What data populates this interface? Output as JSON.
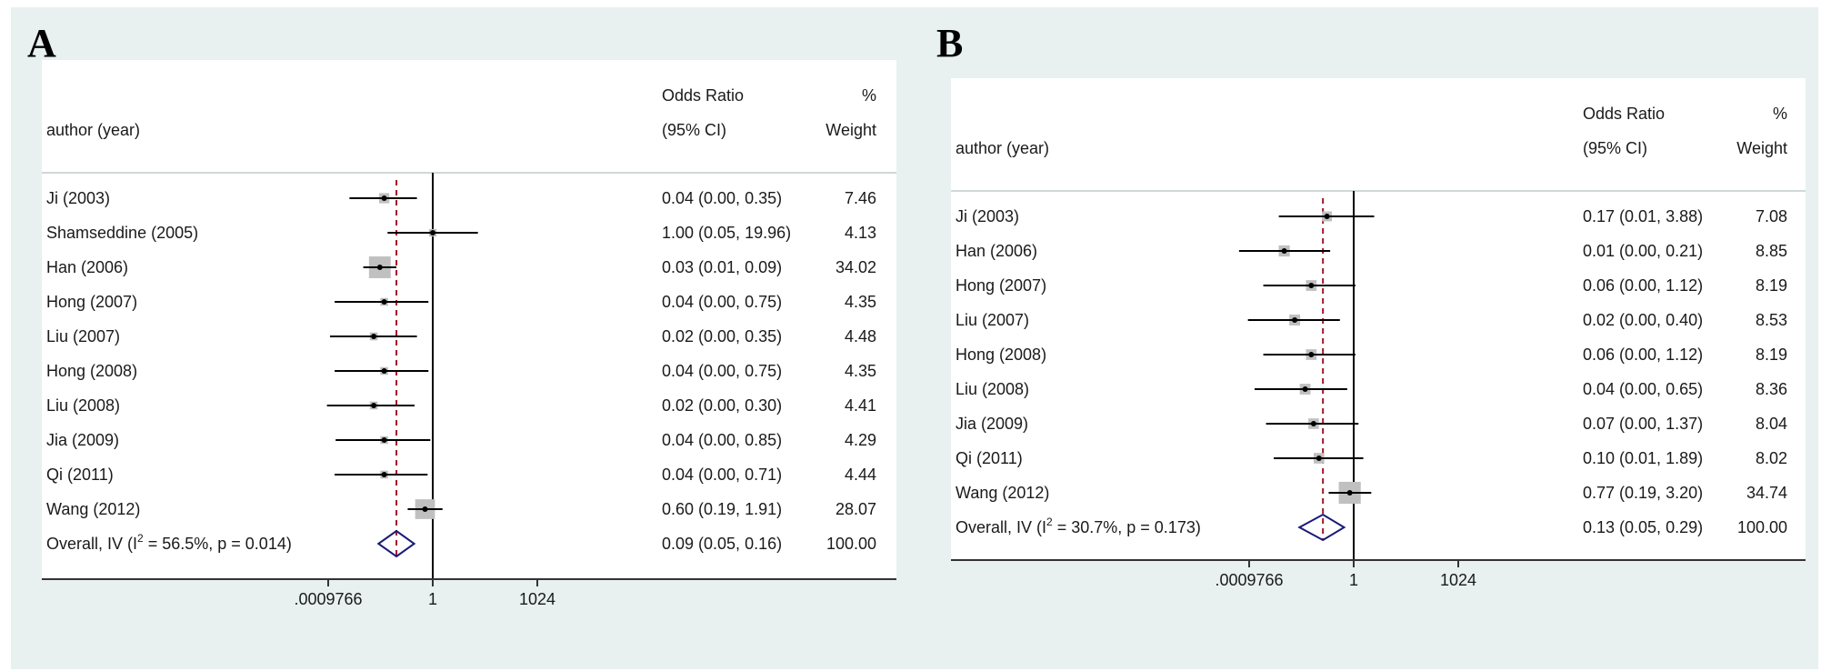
{
  "colors": {
    "background": "#e8f0f0",
    "plot_area": "#ffffff",
    "axis": "#333333",
    "null_line": "#000000",
    "overall_line": "#a0182a",
    "diamond": "#1a1a7a",
    "weight_box": "#c0c0c0",
    "ci_line": "#000000"
  },
  "icons": {
    "weight_marker": "grey-square-marker",
    "point_marker": "black-dot-marker",
    "pooled_marker": "diamond-marker"
  },
  "chart_data": [
    {
      "panel_label": "A",
      "type": "forest",
      "columns": {
        "study": "author (year)",
        "effect_line1": "Odds Ratio",
        "effect_line2": "(95% CI)",
        "weight_line1": "%",
        "weight_line2": "Weight"
      },
      "x_scale": "log2",
      "x_ticks": [
        {
          "label": ".0009766",
          "value": 0.0009766
        },
        {
          "label": "1",
          "value": 1
        },
        {
          "label": "1024",
          "value": 1024
        }
      ],
      "studies": [
        {
          "name": "Ji (2003)",
          "or": 0.04,
          "lo": 0.004,
          "hi": 0.35,
          "ci_text": "0.04 (0.00, 0.35)",
          "weight": 7.46,
          "weight_text": "7.46"
        },
        {
          "name": "Shamseddine (2005)",
          "or": 1.0,
          "lo": 0.05,
          "hi": 19.96,
          "ci_text": "1.00 (0.05, 19.96)",
          "weight": 4.13,
          "weight_text": "4.13"
        },
        {
          "name": "Han  (2006)",
          "or": 0.03,
          "lo": 0.01,
          "hi": 0.09,
          "ci_text": "0.03 (0.01, 0.09)",
          "weight": 34.02,
          "weight_text": "34.02"
        },
        {
          "name": "Hong (2007)",
          "or": 0.04,
          "lo": 0.0015,
          "hi": 0.75,
          "ci_text": "0.04 (0.00, 0.75)",
          "weight": 4.35,
          "weight_text": "4.35"
        },
        {
          "name": "Liu (2007)",
          "or": 0.02,
          "lo": 0.0011,
          "hi": 0.35,
          "ci_text": "0.02 (0.00, 0.35)",
          "weight": 4.48,
          "weight_text": "4.48"
        },
        {
          "name": "Hong (2008)",
          "or": 0.04,
          "lo": 0.0015,
          "hi": 0.75,
          "ci_text": "0.04 (0.00, 0.75)",
          "weight": 4.35,
          "weight_text": "4.35"
        },
        {
          "name": "Liu (2008)",
          "or": 0.02,
          "lo": 0.0009,
          "hi": 0.3,
          "ci_text": "0.02 (0.00, 0.30)",
          "weight": 4.41,
          "weight_text": "4.41"
        },
        {
          "name": "Jia (2009)",
          "or": 0.04,
          "lo": 0.0016,
          "hi": 0.85,
          "ci_text": "0.04 (0.00, 0.85)",
          "weight": 4.29,
          "weight_text": "4.29"
        },
        {
          "name": "Qi (2011)",
          "or": 0.04,
          "lo": 0.0015,
          "hi": 0.71,
          "ci_text": "0.04 (0.00, 0.71)",
          "weight": 4.44,
          "weight_text": "4.44"
        },
        {
          "name": "Wang (2012)",
          "or": 0.6,
          "lo": 0.19,
          "hi": 1.91,
          "ci_text": "0.60 (0.19, 1.91)",
          "weight": 28.07,
          "weight_text": "28.07"
        }
      ],
      "overall": {
        "label_prefix": "Overall, IV (I",
        "label_sup": "2",
        "label_suffix": " = 56.5%, p = 0.014)",
        "or": 0.09,
        "lo": 0.05,
        "hi": 0.16,
        "ci_text": "0.09 (0.05, 0.16)",
        "weight_text": "100.00"
      }
    },
    {
      "panel_label": "B",
      "type": "forest",
      "columns": {
        "study": "author (year)",
        "effect_line1": "Odds Ratio",
        "effect_line2": "(95% CI)",
        "weight_line1": "%",
        "weight_line2": "Weight"
      },
      "x_scale": "log2",
      "x_ticks": [
        {
          "label": ".0009766",
          "value": 0.0009766
        },
        {
          "label": "1",
          "value": 1
        },
        {
          "label": "1024",
          "value": 1024
        }
      ],
      "studies": [
        {
          "name": "Ji (2003)",
          "or": 0.17,
          "lo": 0.007,
          "hi": 3.88,
          "ci_text": "0.17 (0.01, 3.88)",
          "weight": 7.08,
          "weight_text": "7.08"
        },
        {
          "name": "Han  (2006)",
          "or": 0.01,
          "lo": 0.0005,
          "hi": 0.21,
          "ci_text": "0.01 (0.00, 0.21)",
          "weight": 8.85,
          "weight_text": "8.85"
        },
        {
          "name": "Hong (2007)",
          "or": 0.06,
          "lo": 0.0025,
          "hi": 1.12,
          "ci_text": "0.06 (0.00, 1.12)",
          "weight": 8.19,
          "weight_text": "8.19"
        },
        {
          "name": "Liu (2007)",
          "or": 0.02,
          "lo": 0.0009,
          "hi": 0.4,
          "ci_text": "0.02 (0.00, 0.40)",
          "weight": 8.53,
          "weight_text": "8.53"
        },
        {
          "name": "Hong (2008)",
          "or": 0.06,
          "lo": 0.0025,
          "hi": 1.12,
          "ci_text": "0.06 (0.00, 1.12)",
          "weight": 8.19,
          "weight_text": "8.19"
        },
        {
          "name": "Liu (2008)",
          "or": 0.04,
          "lo": 0.0014,
          "hi": 0.65,
          "ci_text": "0.04 (0.00, 0.65)",
          "weight": 8.36,
          "weight_text": "8.36"
        },
        {
          "name": "Jia (2009)",
          "or": 0.07,
          "lo": 0.003,
          "hi": 1.37,
          "ci_text": "0.07 (0.00, 1.37)",
          "weight": 8.04,
          "weight_text": "8.04"
        },
        {
          "name": "Qi (2011)",
          "or": 0.1,
          "lo": 0.005,
          "hi": 1.89,
          "ci_text": "0.10 (0.01, 1.89)",
          "weight": 8.02,
          "weight_text": "8.02"
        },
        {
          "name": "Wang (2012)",
          "or": 0.77,
          "lo": 0.19,
          "hi": 3.2,
          "ci_text": "0.77 (0.19, 3.20)",
          "weight": 34.74,
          "weight_text": "34.74"
        }
      ],
      "overall": {
        "label_prefix": "Overall, IV (I",
        "label_sup": "2",
        "label_suffix": " = 30.7%, p = 0.173)",
        "or": 0.13,
        "lo": 0.05,
        "hi": 0.29,
        "ci_text": "0.13 (0.05, 0.29)",
        "weight_text": "100.00"
      }
    }
  ]
}
